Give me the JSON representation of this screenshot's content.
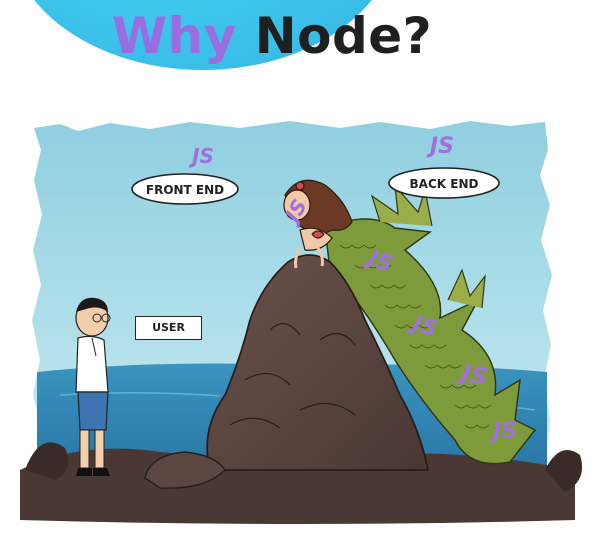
{
  "title": {
    "highlight": "Why",
    "rest": "Node?"
  },
  "labels": {
    "front_end": "FRONT END",
    "back_end": "BACK END",
    "user": "USER",
    "js": "JS"
  },
  "colors": {
    "accent_purple": "#9b6de2",
    "title_dark": "#1f1f1f",
    "sky": "#a9dbe8",
    "sea": "#2f86b3",
    "rock": "#5a4440",
    "tail": "#7f9a3a",
    "blob": "#3cc3ea"
  }
}
